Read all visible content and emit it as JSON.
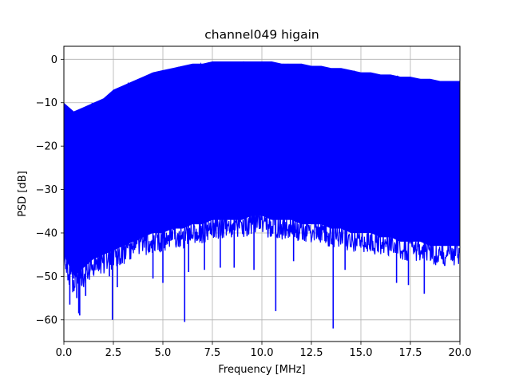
{
  "chart_data": {
    "type": "line",
    "title": "channel049 higain",
    "xlabel": "Frequency [MHz]",
    "ylabel": "PSD [dB]",
    "xlim": [
      0,
      20
    ],
    "ylim": [
      -65,
      3
    ],
    "xticks": [
      0,
      2.5,
      5,
      7.5,
      10,
      12.5,
      15,
      17.5,
      20
    ],
    "xtick_labels": [
      "0.0",
      "2.5",
      "5.0",
      "7.5",
      "10.0",
      "12.5",
      "15.0",
      "17.5",
      "20.0"
    ],
    "yticks": [
      0,
      -10,
      -20,
      -30,
      -40,
      -50,
      -60
    ],
    "ytick_labels": [
      "0",
      "−10",
      "−20",
      "−30",
      "−40",
      "−50",
      "−60"
    ],
    "grid": true,
    "series": [
      {
        "color": "#0000ff",
        "description": "dense noisy power spectral density trace; filled band between lower and upper envelope",
        "envelope_x": [
          0.0,
          0.5,
          1.0,
          1.5,
          2.0,
          2.5,
          3.0,
          3.5,
          4.0,
          4.5,
          5.0,
          5.5,
          6.0,
          6.5,
          7.0,
          7.5,
          8.0,
          8.5,
          9.0,
          9.5,
          10.0,
          10.5,
          11.0,
          11.5,
          12.0,
          12.5,
          13.0,
          13.5,
          14.0,
          14.5,
          15.0,
          15.5,
          16.0,
          16.5,
          17.0,
          17.5,
          18.0,
          18.5,
          19.0,
          19.5,
          20.0
        ],
        "upper_envelope": [
          -10,
          -12,
          -11,
          -10,
          -9,
          -7,
          -6,
          -5,
          -4,
          -3,
          -2.5,
          -2,
          -1.5,
          -1,
          -1,
          -0.5,
          -0.5,
          -0.5,
          -0.5,
          -0.5,
          -0.5,
          -0.5,
          -1,
          -1,
          -1,
          -1.5,
          -1.5,
          -2,
          -2,
          -2.5,
          -3,
          -3,
          -3.5,
          -3.5,
          -4,
          -4,
          -4.5,
          -4.5,
          -5,
          -5,
          -5
        ],
        "lower_envelope": [
          -45,
          -50,
          -48,
          -46,
          -45,
          -44,
          -43,
          -42,
          -41,
          -40,
          -40,
          -39,
          -39,
          -38,
          -38,
          -37,
          -37,
          -37,
          -37,
          -36,
          -36,
          -37,
          -37,
          -37,
          -38,
          -38,
          -38,
          -39,
          -39,
          -40,
          -40,
          -40,
          -41,
          -41,
          -42,
          -42,
          -42,
          -43,
          -43,
          -43,
          -43
        ],
        "dips": [
          {
            "x": 0.2,
            "y": -45
          },
          {
            "x": 0.3,
            "y": -56.5
          },
          {
            "x": 0.5,
            "y": -50.5
          },
          {
            "x": 0.65,
            "y": -55
          },
          {
            "x": 0.75,
            "y": -58.5
          },
          {
            "x": 0.8,
            "y": -59
          },
          {
            "x": 1.1,
            "y": -54.5
          },
          {
            "x": 2.3,
            "y": -50
          },
          {
            "x": 2.45,
            "y": -60
          },
          {
            "x": 2.7,
            "y": -52.5
          },
          {
            "x": 4.5,
            "y": -50.5
          },
          {
            "x": 5.0,
            "y": -51.5
          },
          {
            "x": 6.1,
            "y": -60.5
          },
          {
            "x": 6.3,
            "y": -49
          },
          {
            "x": 7.1,
            "y": -48.5
          },
          {
            "x": 7.9,
            "y": -48
          },
          {
            "x": 8.6,
            "y": -48
          },
          {
            "x": 9.6,
            "y": -48.5
          },
          {
            "x": 10.7,
            "y": -58
          },
          {
            "x": 11.6,
            "y": -46.5
          },
          {
            "x": 13.6,
            "y": -62
          },
          {
            "x": 14.2,
            "y": -48.5
          },
          {
            "x": 16.8,
            "y": -51.5
          },
          {
            "x": 17.4,
            "y": -52
          },
          {
            "x": 18.2,
            "y": -54
          }
        ]
      }
    ]
  }
}
